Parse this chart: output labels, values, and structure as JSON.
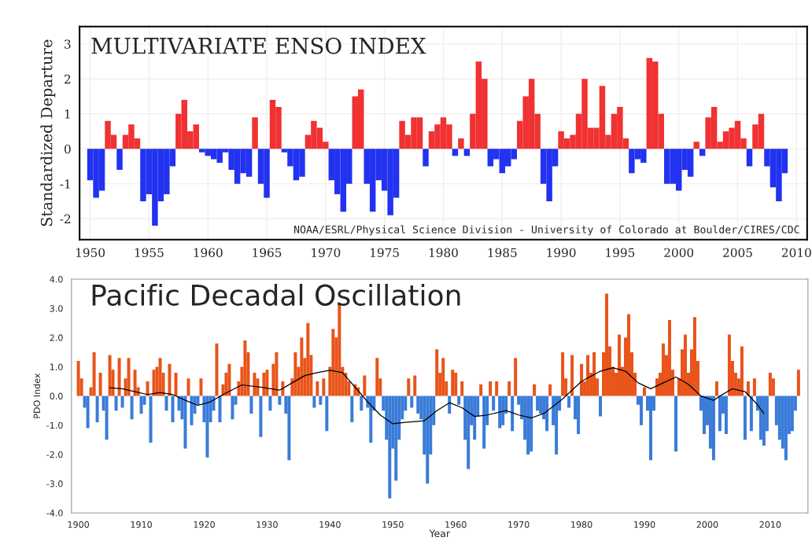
{
  "chart_data": [
    {
      "type": "bar",
      "title": "MULTIVARIATE ENSO INDEX",
      "ylabel": "Standardized Departure",
      "annotations": [
        "NOAA/ESRL/Physical Science Division - University of Colorado at Boulder/CIRES/CDC"
      ],
      "x": [
        1950,
        1950.5,
        1951,
        1951.5,
        1952,
        1952.5,
        1953,
        1953.5,
        1954,
        1954.5,
        1955,
        1955.5,
        1956,
        1956.5,
        1957,
        1957.5,
        1958,
        1958.5,
        1959,
        1959.5,
        1960,
        1960.5,
        1961,
        1961.5,
        1962,
        1962.5,
        1963,
        1963.5,
        1964,
        1964.5,
        1965,
        1965.5,
        1966,
        1966.5,
        1967,
        1967.5,
        1968,
        1968.5,
        1969,
        1969.5,
        1970,
        1970.5,
        1971,
        1971.5,
        1972,
        1972.5,
        1973,
        1973.5,
        1974,
        1974.5,
        1975,
        1975.5,
        1976,
        1976.5,
        1977,
        1977.5,
        1978,
        1978.5,
        1979,
        1979.5,
        1980,
        1980.5,
        1981,
        1981.5,
        1982,
        1982.5,
        1983,
        1983.5,
        1984,
        1984.5,
        1985,
        1985.5,
        1986,
        1986.5,
        1987,
        1987.5,
        1988,
        1988.5,
        1989,
        1989.5,
        1990,
        1990.5,
        1991,
        1991.5,
        1992,
        1992.5,
        1993,
        1993.5,
        1994,
        1994.5,
        1995,
        1995.5,
        1996,
        1996.5,
        1997,
        1997.5,
        1998,
        1998.5,
        1999,
        1999.5,
        2000,
        2000.5,
        2001,
        2001.5,
        2002,
        2002.5,
        2003,
        2003.5,
        2004,
        2004.5,
        2005,
        2005.5,
        2006,
        2006.5,
        2007,
        2007.5,
        2008,
        2008.5,
        2009
      ],
      "series": [
        {
          "color": "#f03232",
          "values": [
            null,
            null,
            null,
            0.8,
            0.4,
            null,
            0.4,
            0.7,
            0.3,
            null,
            null,
            null,
            null,
            null,
            null,
            1.0,
            1.4,
            0.5,
            0.7,
            null,
            null,
            null,
            null,
            null,
            null,
            null,
            null,
            null,
            0.9,
            null,
            null,
            1.4,
            1.2,
            null,
            null,
            null,
            null,
            0.4,
            0.8,
            0.6,
            0.2,
            null,
            null,
            null,
            null,
            1.5,
            1.7,
            null,
            null,
            null,
            null,
            null,
            null,
            0.8,
            0.4,
            0.9,
            0.9,
            null,
            0.5,
            0.7,
            0.9,
            0.7,
            null,
            0.3,
            null,
            1.0,
            2.5,
            2.0,
            null,
            null,
            null,
            null,
            null,
            0.8,
            1.5,
            2.0,
            1.0,
            null,
            null,
            null,
            0.5,
            0.3,
            0.4,
            1.0,
            2.0,
            0.6,
            0.6,
            1.8,
            0.4,
            1.0,
            1.2,
            0.3,
            null,
            null,
            null,
            2.6,
            2.5,
            1.0,
            null,
            null,
            null,
            null,
            null,
            0.2,
            null,
            0.9,
            1.2,
            0.2,
            0.5,
            0.6,
            0.8,
            0.3,
            null,
            0.7,
            1.0,
            null,
            null,
            null,
            null
          ]
        },
        {
          "color": "#2232f0",
          "values": [
            -0.9,
            -1.4,
            -1.2,
            null,
            null,
            -0.6,
            null,
            null,
            null,
            -1.5,
            -1.3,
            -2.2,
            -1.5,
            -1.3,
            -0.5,
            null,
            null,
            null,
            null,
            -0.1,
            -0.2,
            -0.3,
            -0.4,
            -0.1,
            -0.6,
            -1.0,
            -0.7,
            -0.8,
            null,
            -1.0,
            -1.4,
            null,
            null,
            -0.1,
            -0.5,
            -0.9,
            -0.8,
            null,
            null,
            null,
            null,
            -0.9,
            -1.3,
            -1.8,
            -1.0,
            null,
            null,
            -1.0,
            -1.8,
            -0.9,
            -1.2,
            -1.9,
            -1.4,
            null,
            null,
            null,
            null,
            -0.5,
            null,
            null,
            null,
            null,
            -0.2,
            null,
            -0.2,
            null,
            null,
            null,
            -0.5,
            -0.3,
            -0.7,
            -0.5,
            -0.3,
            null,
            null,
            null,
            null,
            -1.0,
            -1.5,
            -0.5,
            null,
            null,
            null,
            null,
            null,
            null,
            null,
            null,
            null,
            null,
            null,
            null,
            -0.7,
            -0.3,
            -0.4,
            null,
            null,
            null,
            -1.0,
            -1.0,
            -1.2,
            -0.6,
            -0.8,
            null,
            -0.2,
            null,
            null,
            null,
            null,
            null,
            null,
            null,
            -0.5,
            null,
            null,
            -0.5,
            -1.1,
            -1.5,
            -0.7
          ]
        }
      ],
      "xlim": [
        1949.1,
        2010.9
      ],
      "xticks": [
        1950,
        1955,
        1960,
        1965,
        1970,
        1975,
        1980,
        1985,
        1990,
        1995,
        2000,
        2005,
        2010
      ],
      "ylim": [
        -2.6,
        3.5
      ],
      "yticks": [
        -2,
        -1,
        0,
        1,
        2,
        3
      ],
      "grid": true
    },
    {
      "type": "bar",
      "title": "Pacific Decadal Oscillation",
      "ylabel": "PDO Index",
      "xlabel": "Year",
      "x": [
        1900,
        1900.5,
        1901,
        1901.5,
        1902,
        1902.5,
        1903,
        1903.5,
        1904,
        1904.5,
        1905,
        1905.5,
        1906,
        1906.5,
        1907,
        1907.5,
        1908,
        1908.5,
        1909,
        1909.5,
        1910,
        1910.5,
        1911,
        1911.5,
        1912,
        1912.5,
        1913,
        1913.5,
        1914,
        1914.5,
        1915,
        1915.5,
        1916,
        1916.5,
        1917,
        1917.5,
        1918,
        1918.5,
        1919,
        1919.5,
        1920,
        1920.5,
        1921,
        1921.5,
        1922,
        1922.5,
        1923,
        1923.5,
        1924,
        1924.5,
        1925,
        1925.5,
        1926,
        1926.5,
        1927,
        1927.5,
        1928,
        1928.5,
        1929,
        1929.5,
        1930,
        1930.5,
        1931,
        1931.5,
        1932,
        1932.5,
        1933,
        1933.5,
        1934,
        1934.5,
        1935,
        1935.5,
        1936,
        1936.5,
        1937,
        1937.5,
        1938,
        1938.5,
        1939,
        1939.5,
        1940,
        1940.5,
        1941,
        1941.5,
        1942,
        1942.5,
        1943,
        1943.5,
        1944,
        1944.5,
        1945,
        1945.5,
        1946,
        1946.5,
        1947,
        1947.5,
        1948,
        1948.5,
        1949,
        1949.5,
        1950,
        1950.5,
        1951,
        1951.5,
        1952,
        1952.5,
        1953,
        1953.5,
        1954,
        1954.5,
        1955,
        1955.5,
        1956,
        1956.5,
        1957,
        1957.5,
        1958,
        1958.5,
        1959,
        1959.5,
        1960,
        1960.5,
        1961,
        1961.5,
        1962,
        1962.5,
        1963,
        1963.5,
        1964,
        1964.5,
        1965,
        1965.5,
        1966,
        1966.5,
        1967,
        1967.5,
        1968,
        1968.5,
        1969,
        1969.5,
        1970,
        1970.5,
        1971,
        1971.5,
        1972,
        1972.5,
        1973,
        1973.5,
        1974,
        1974.5,
        1975,
        1975.5,
        1976,
        1976.5,
        1977,
        1977.5,
        1978,
        1978.5,
        1979,
        1979.5,
        1980,
        1980.5,
        1981,
        1981.5,
        1982,
        1982.5,
        1983,
        1983.5,
        1984,
        1984.5,
        1985,
        1985.5,
        1986,
        1986.5,
        1987,
        1987.5,
        1988,
        1988.5,
        1989,
        1989.5,
        1990,
        1990.5,
        1991,
        1991.5,
        1992,
        1992.5,
        1993,
        1993.5,
        1994,
        1994.5,
        1995,
        1995.5,
        1996,
        1996.5,
        1997,
        1997.5,
        1998,
        1998.5,
        1999,
        1999.5,
        2000,
        2000.5,
        2001,
        2001.5,
        2002,
        2002.5,
        2003,
        2003.5,
        2004,
        2004.5,
        2005,
        2005.5,
        2006,
        2006.5,
        2007,
        2007.5,
        2008,
        2008.5,
        2009,
        2009.5,
        2010,
        2010.5,
        2011,
        2011.5,
        2012,
        2012.5,
        2013,
        2013.5,
        2014,
        2014.5
      ],
      "series": [
        {
          "color": "#e8541a",
          "values": [
            1.2,
            0.6,
            null,
            null,
            0.3,
            1.5,
            null,
            0.8,
            null,
            null,
            1.4,
            0.9,
            null,
            1.3,
            null,
            0.6,
            1.3,
            null,
            0.9,
            0.3,
            null,
            null,
            0.5,
            null,
            0.9,
            1.0,
            1.3,
            0.8,
            null,
            1.1,
            null,
            0.8,
            null,
            null,
            null,
            0.6,
            null,
            null,
            null,
            0.6,
            null,
            null,
            null,
            null,
            1.8,
            null,
            0.4,
            0.8,
            1.1,
            null,
            null,
            0.5,
            1.0,
            1.9,
            1.5,
            null,
            0.8,
            0.6,
            null,
            0.8,
            0.9,
            null,
            1.1,
            1.5,
            null,
            0.5,
            null,
            null,
            0.6,
            1.5,
            1.0,
            2.0,
            1.3,
            2.5,
            1.4,
            null,
            0.5,
            null,
            0.6,
            null,
            1.0,
            2.3,
            2.0,
            3.2,
            1.0,
            0.8,
            0.5,
            null,
            0.4,
            0.3,
            null,
            0.7,
            null,
            null,
            null,
            1.3,
            0.6,
            null,
            null,
            null,
            null,
            null,
            null,
            null,
            null,
            0.6,
            null,
            0.7,
            null,
            null,
            null,
            null,
            null,
            null,
            1.6,
            0.8,
            1.3,
            0.5,
            null,
            0.9,
            0.8,
            null,
            0.5,
            null,
            null,
            null,
            null,
            null,
            0.4,
            null,
            null,
            0.5,
            null,
            0.5,
            null,
            null,
            null,
            0.5,
            null,
            1.3,
            null,
            null,
            null,
            null,
            null,
            0.4,
            null,
            null,
            null,
            null,
            0.4,
            null,
            null,
            null,
            1.5,
            0.6,
            null,
            1.4,
            null,
            null,
            1.1,
            0.5,
            1.4,
            0.8,
            1.5,
            0.6,
            null,
            1.5,
            3.5,
            1.7,
            1.0,
            0.8,
            2.1,
            1.0,
            2.0,
            2.8,
            1.5,
            0.8,
            null,
            null,
            0.3,
            null,
            null,
            null,
            0.6,
            0.8,
            1.8,
            1.4,
            2.6,
            0.9,
            null,
            0.6,
            1.6,
            2.1,
            0.8,
            1.6,
            2.7,
            1.2,
            null,
            null,
            null,
            null,
            null,
            0.5,
            null,
            null,
            null,
            2.1,
            1.2,
            0.8,
            0.6,
            1.7,
            null,
            0.5,
            null,
            0.6,
            null,
            null,
            null,
            null,
            0.8,
            0.6,
            null,
            null,
            null,
            null,
            null,
            null,
            null,
            0.9
          ]
        },
        {
          "color": "#3a7bd8",
          "values": [
            null,
            null,
            -0.4,
            -1.1,
            null,
            null,
            -0.9,
            null,
            -0.5,
            -1.5,
            null,
            null,
            -0.5,
            null,
            -0.4,
            null,
            null,
            -0.8,
            null,
            null,
            -0.6,
            -0.3,
            null,
            -1.6,
            null,
            null,
            null,
            null,
            -0.5,
            null,
            -0.9,
            null,
            -0.5,
            -0.8,
            -1.8,
            null,
            -1.0,
            -0.6,
            -0.3,
            null,
            -0.9,
            -2.1,
            -0.9,
            -0.5,
            null,
            -0.9,
            null,
            null,
            null,
            -0.8,
            -0.3,
            null,
            null,
            null,
            null,
            -0.6,
            null,
            null,
            -1.4,
            null,
            null,
            -0.5,
            null,
            null,
            -0.3,
            null,
            -0.6,
            -2.2,
            null,
            null,
            null,
            null,
            null,
            null,
            null,
            -0.4,
            null,
            -0.3,
            null,
            -1.2,
            null,
            null,
            null,
            null,
            null,
            null,
            null,
            -0.9,
            null,
            null,
            -0.5,
            null,
            -0.4,
            -1.6,
            -0.5,
            null,
            null,
            -0.5,
            -1.5,
            -3.5,
            -1.8,
            -2.9,
            -1.5,
            -0.8,
            -0.5,
            null,
            -0.4,
            null,
            -0.6,
            -0.8,
            -2.0,
            -3.0,
            -2.0,
            -1.0,
            null,
            null,
            null,
            null,
            -0.6,
            null,
            null,
            -0.3,
            null,
            -1.5,
            -2.5,
            -1.0,
            -1.5,
            -0.7,
            null,
            -1.8,
            -1.0,
            null,
            -0.5,
            null,
            -1.1,
            -1.0,
            -0.6,
            null,
            -1.2,
            null,
            -0.3,
            -0.8,
            -1.5,
            -2.0,
            -1.9,
            null,
            -0.5,
            -0.6,
            -0.8,
            -1.2,
            null,
            -1.0,
            -2.0,
            -0.5,
            null,
            null,
            -0.4,
            null,
            -0.8,
            -1.3,
            null,
            null,
            null,
            null,
            null,
            null,
            -0.7,
            null,
            null,
            null,
            null,
            null,
            null,
            null,
            null,
            null,
            null,
            null,
            -0.3,
            -1.0,
            null,
            -0.5,
            -2.2,
            -0.5,
            null,
            null,
            null,
            null,
            null,
            null,
            -1.9,
            null,
            null,
            null,
            null,
            null,
            null,
            null,
            -0.5,
            -1.3,
            -1.0,
            -1.8,
            -2.2,
            null,
            -1.2,
            -0.6,
            -1.3,
            null,
            null,
            null,
            null,
            null,
            -1.5,
            null,
            -1.2,
            null,
            -0.5,
            -1.5,
            -1.7,
            -1.2,
            null,
            null,
            -1.0,
            -1.5,
            -1.8,
            -2.2,
            -1.3,
            -1.2,
            -0.5,
            null
          ]
        },
        {
          "type": "line",
          "color": "#000000",
          "x": [
            1905,
            1907,
            1909,
            1911,
            1913,
            1915,
            1917,
            1919,
            1921,
            1923,
            1926,
            1929,
            1932,
            1934,
            1936,
            1938,
            1940,
            1942,
            1944,
            1946,
            1948,
            1950,
            1952,
            1955,
            1957,
            1959,
            1961,
            1963,
            1965,
            1968,
            1970,
            1972,
            1974,
            1977,
            1980,
            1983,
            1985,
            1987,
            1989,
            1991,
            1993,
            1995,
            1997,
            1999,
            2001,
            2002,
            2004,
            2006,
            2008,
            2009
          ],
          "values": [
            0.28,
            0.25,
            0.15,
            0.05,
            0.12,
            0.05,
            -0.15,
            -0.32,
            -0.2,
            0.05,
            0.38,
            0.3,
            0.2,
            0.45,
            0.7,
            0.8,
            0.88,
            0.8,
            0.3,
            -0.2,
            -0.65,
            -0.95,
            -0.9,
            -0.85,
            -0.5,
            -0.23,
            -0.4,
            -0.7,
            -0.65,
            -0.5,
            -0.65,
            -0.75,
            -0.6,
            -0.1,
            0.5,
            0.85,
            0.97,
            0.85,
            0.45,
            0.25,
            0.45,
            0.65,
            0.4,
            0.0,
            -0.15,
            0.0,
            0.25,
            0.15,
            -0.3,
            -0.6
          ]
        }
      ],
      "xlim": [
        1898.9,
        2016
      ],
      "xticks": [
        1900,
        1910,
        1920,
        1930,
        1940,
        1950,
        1960,
        1970,
        1980,
        1990,
        2000,
        2010
      ],
      "ylim": [
        -4,
        4
      ],
      "yticks": [
        {
          "value": -4,
          "label": "-4.0"
        },
        {
          "value": -3,
          "label": "-3.0"
        },
        {
          "value": -2,
          "label": "-2.0"
        },
        {
          "value": -1,
          "label": "-1.0"
        },
        {
          "value": 0,
          "label": "0.0"
        },
        {
          "value": 1,
          "label": "1.0"
        },
        {
          "value": 2,
          "label": "2.0"
        },
        {
          "value": 3,
          "label": "3.0"
        },
        {
          "value": 4,
          "label": "4.0"
        }
      ]
    }
  ]
}
